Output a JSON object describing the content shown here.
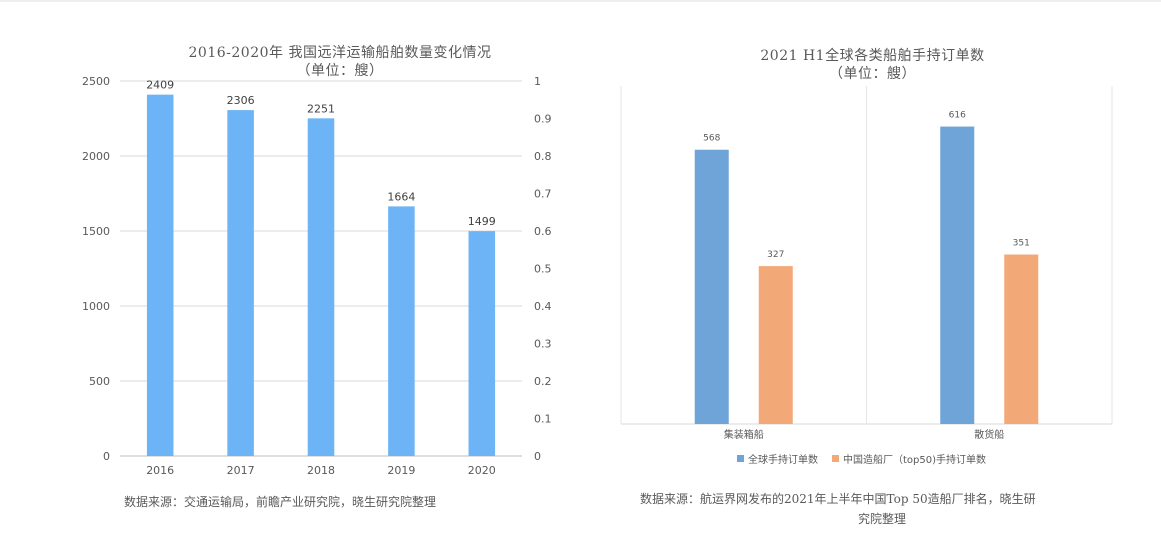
{
  "chart_data": [
    {
      "type": "bar",
      "title": "2016-2020年 我国远洋运输船舶数量变化情况",
      "subtitle": "（单位：艘）",
      "categories": [
        "2016",
        "2017",
        "2018",
        "2019",
        "2020"
      ],
      "values": [
        2409,
        2306,
        2251,
        1664,
        1499
      ],
      "ylim": [
        0,
        2500
      ],
      "yticks": [
        "0",
        "500",
        "1000",
        "1500",
        "2000",
        "2500"
      ],
      "ylim_right": [
        0,
        1
      ],
      "yticks_right": [
        "0",
        "0.1",
        "0.2",
        "0.3",
        "0.4",
        "0.5",
        "0.6",
        "0.7",
        "0.8",
        "0.9",
        "1"
      ],
      "grid": true,
      "color": "#6cb4f5",
      "source": "数据来源：交通运输局，前瞻产业研究院，晓生研究院整理"
    },
    {
      "type": "bar",
      "title": "2021 H1全球各类船舶手持订单数",
      "subtitle": "（单位：艘）",
      "categories": [
        "集装箱船",
        "散货船"
      ],
      "series": [
        {
          "name": "全球手持订单数",
          "values": [
            568,
            616
          ],
          "color": "#6fa4d9"
        },
        {
          "name": "中国造船厂（top50)手持订单数",
          "values": [
            327,
            351
          ],
          "color": "#f3a877"
        }
      ],
      "ylim": [
        0,
        700
      ],
      "grid": false,
      "legend_position": "bottom",
      "source_lines": [
        "数据来源：航运界网发布的2021年上半年中国Top 50造船厂排名，晓生研",
        "究院整理"
      ]
    }
  ]
}
